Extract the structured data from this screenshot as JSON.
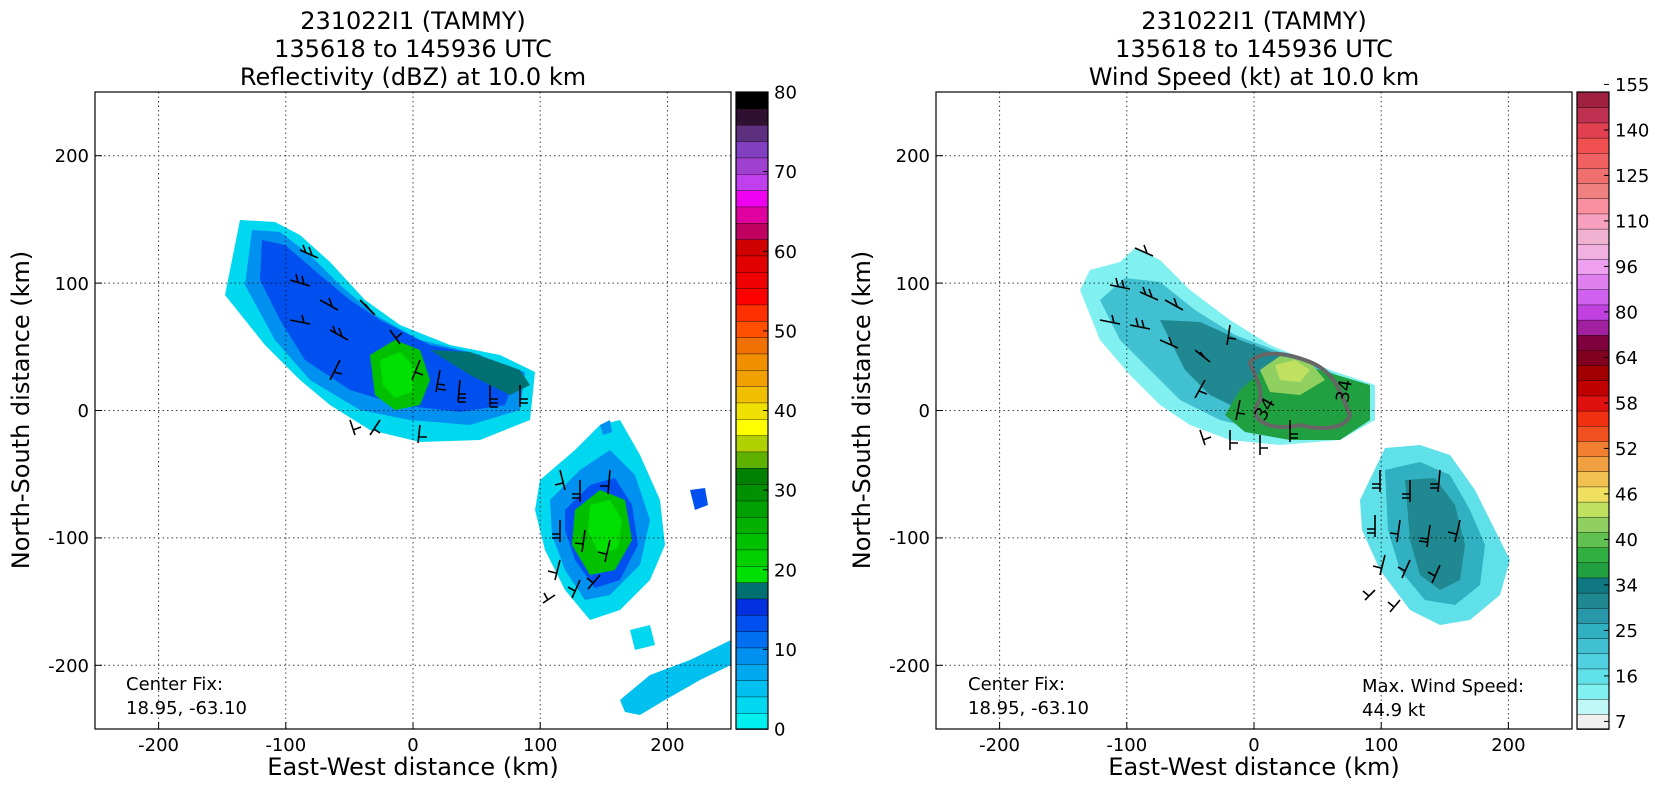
{
  "chart_data": [
    {
      "type": "heatmap",
      "title": [
        "231022I1 (TAMMY)",
        "135618 to 145936 UTC",
        "Reflectivity (dBZ) at 10.0 km"
      ],
      "xlabel": "East-West distance (km)",
      "ylabel": "North-South distance (km)",
      "xlim": [
        -250,
        250
      ],
      "ylim": [
        -250,
        250
      ],
      "xticks": [
        -200,
        -100,
        0,
        100,
        200
      ],
      "yticks": [
        -200,
        -100,
        0,
        100,
        200
      ],
      "grid": true,
      "annotations": [
        {
          "text_lines": [
            "Center Fix:",
            "18.95, -63.10"
          ],
          "placement": "bottom-left"
        }
      ],
      "colorbar": {
        "ticks": [
          0,
          10,
          20,
          30,
          40,
          50,
          60,
          70,
          80
        ],
        "min": 0,
        "max": 80,
        "colors": [
          "#00f0f0",
          "#00d8f0",
          "#00c0f0",
          "#00a8f0",
          "#0090f0",
          "#0070f0",
          "#0050f0",
          "#0030e0",
          "#007070",
          "#00e000",
          "#00d000",
          "#00c000",
          "#00b000",
          "#00a000",
          "#009000",
          "#008000",
          "#60b000",
          "#b0d000",
          "#ffff00",
          "#f0e000",
          "#f0c000",
          "#f0a000",
          "#f09000",
          "#f07000",
          "#ff5000",
          "#ff3000",
          "#ff0000",
          "#f00000",
          "#e00000",
          "#d00000",
          "#c00060",
          "#e000a0",
          "#f000f0",
          "#c040f0",
          "#a040d0",
          "#8040c0",
          "#603080",
          "#301030",
          "#000000"
        ]
      },
      "data_regions": [
        {
          "name": "northern band",
          "dBZ_range": [
            0,
            25
          ],
          "core_center": [
            -15,
            25
          ],
          "core_dBZ": 20
        },
        {
          "name": "southern cell",
          "dBZ_range": [
            0,
            25
          ],
          "core_center": [
            150,
            -85
          ],
          "core_dBZ": 20
        },
        {
          "name": "south-east arc",
          "dBZ_range": [
            0,
            10
          ],
          "core_center": [
            200,
            -200
          ],
          "core_dBZ": 5
        }
      ]
    },
    {
      "type": "heatmap",
      "title": [
        "231022I1 (TAMMY)",
        "135618 to 145936 UTC",
        "Wind Speed (kt) at 10.0 km"
      ],
      "xlabel": "East-West distance (km)",
      "ylabel": "North-South distance (km)",
      "xlim": [
        -250,
        250
      ],
      "ylim": [
        -250,
        250
      ],
      "xticks": [
        -200,
        -100,
        0,
        100,
        200
      ],
      "yticks": [
        -200,
        -100,
        0,
        100,
        200
      ],
      "grid": true,
      "annotations": [
        {
          "text_lines": [
            "Center Fix:",
            "18.95, -63.10"
          ],
          "placement": "bottom-left"
        },
        {
          "text_lines": [
            "Max. Wind Speed:",
            "44.9 kt"
          ],
          "placement": "bottom-right"
        }
      ],
      "contour_labels": [
        "34",
        "34"
      ],
      "colorbar": {
        "ticks": [
          7,
          16,
          25,
          34,
          40,
          46,
          52,
          58,
          64,
          80,
          96,
          110,
          125,
          140,
          155
        ],
        "colors": [
          "#f0f0f0",
          "#c0f8f8",
          "#80f0f0",
          "#60e0e8",
          "#50d0e0",
          "#40c0d0",
          "#30b0c0",
          "#2898a8",
          "#208890",
          "#107880",
          "#20a040",
          "#30b040",
          "#60c050",
          "#90d060",
          "#c0e060",
          "#f0e060",
          "#f0c050",
          "#f0a040",
          "#f08030",
          "#f05020",
          "#f03010",
          "#e01010",
          "#c00000",
          "#a00000",
          "#800020",
          "#800040",
          "#a020a0",
          "#c040e0",
          "#d060f0",
          "#e080f0",
          "#f0a0f0",
          "#f0b0e0",
          "#f0b0d0",
          "#f8a0c0",
          "#f890a0",
          "#f08080",
          "#f07070",
          "#f06060",
          "#f05050",
          "#e04050",
          "#c03050",
          "#a02040"
        ]
      },
      "data_regions": [
        {
          "name": "northern band",
          "kt_range": [
            7,
            44.9
          ],
          "core_center": [
            40,
            10
          ],
          "core_kt": 44.9
        },
        {
          "name": "southern cell",
          "kt_range": [
            7,
            25
          ],
          "core_center": [
            140,
            -110
          ],
          "core_kt": 22
        }
      ]
    }
  ]
}
